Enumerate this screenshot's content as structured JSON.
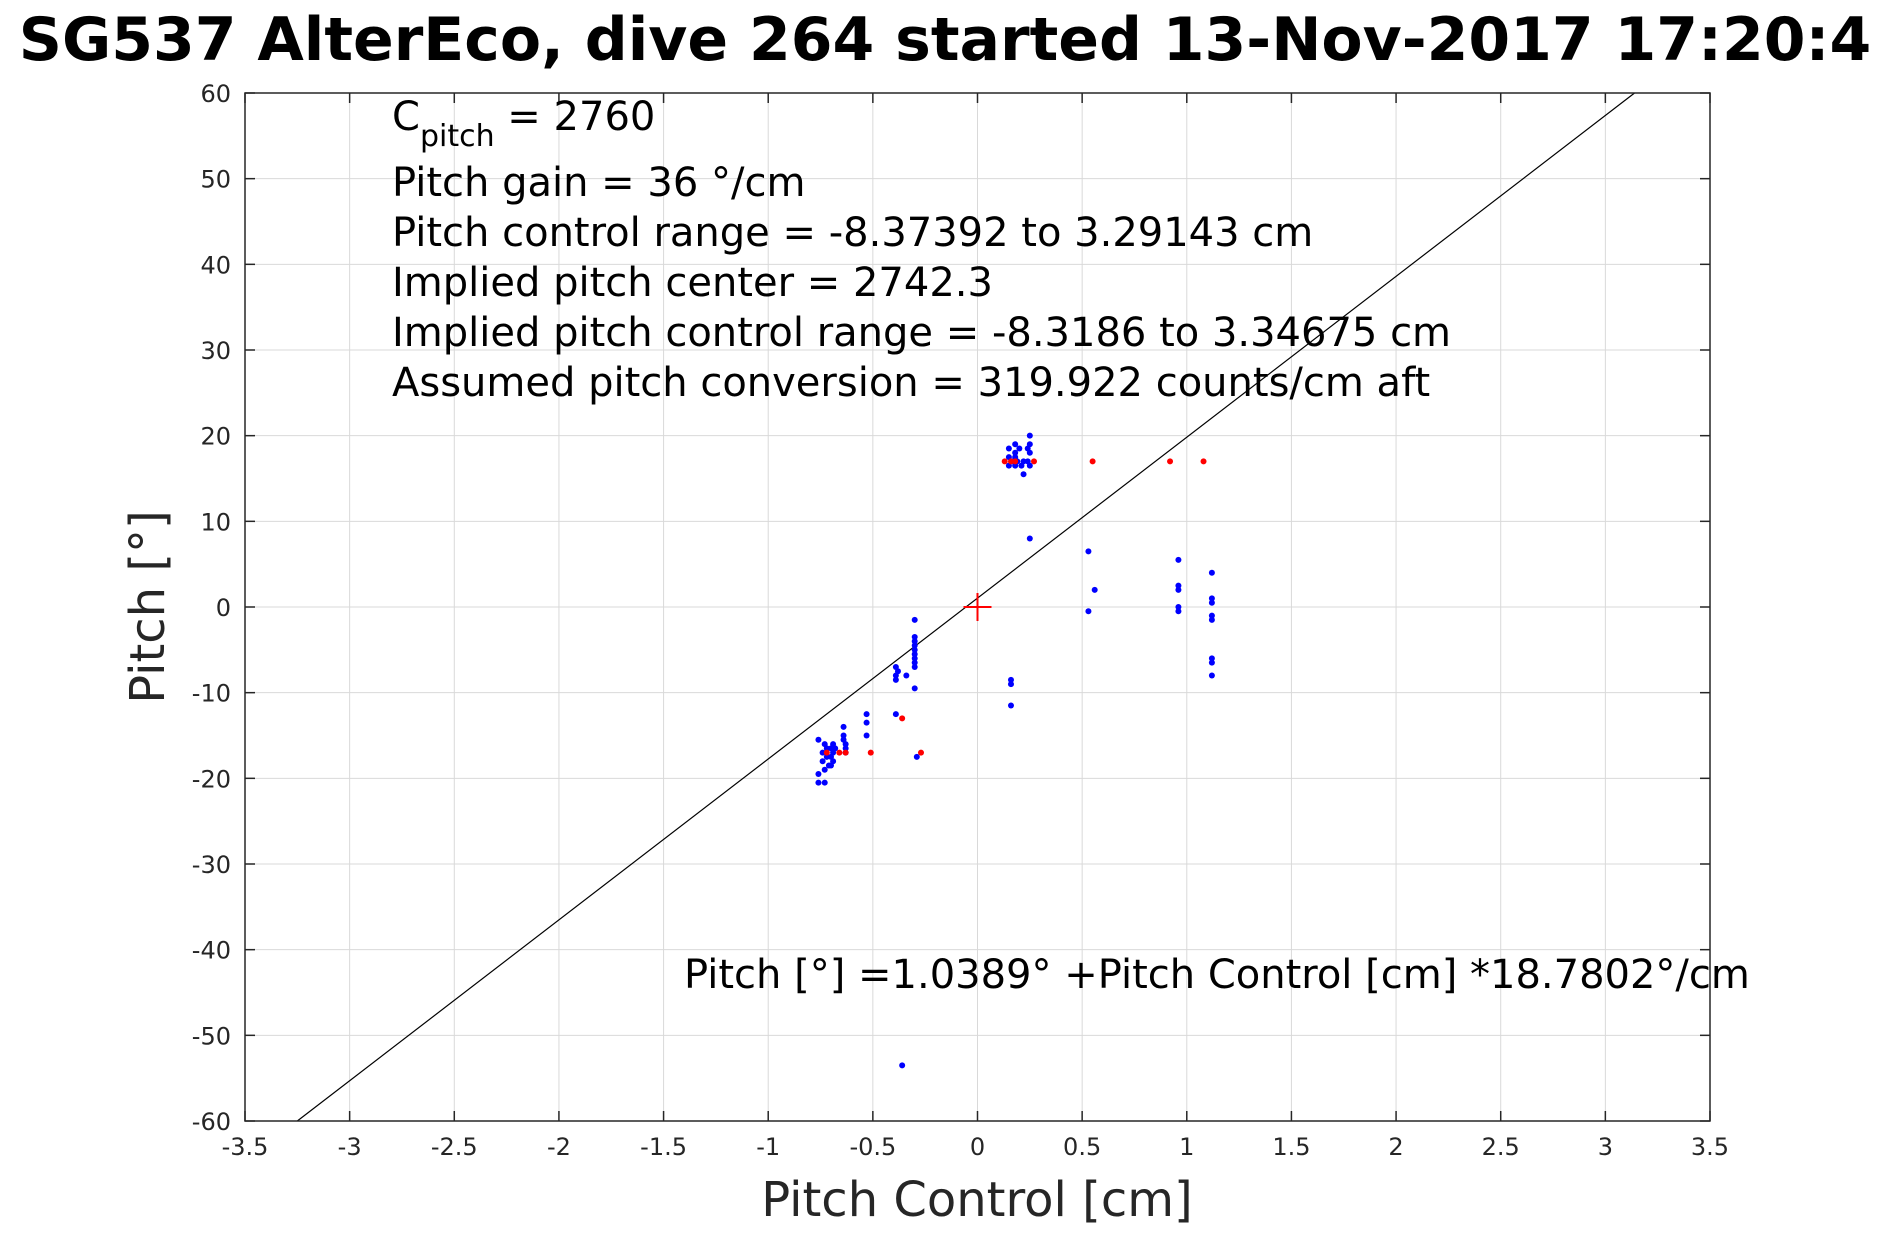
{
  "chart_data": {
    "type": "scatter",
    "title": "SG537 AlterEco, dive 264 started 13-Nov-2017 17:20:4",
    "xlabel": "Pitch Control [cm]",
    "ylabel": "Pitch [°]",
    "xlim": [
      -3.5,
      3.5
    ],
    "ylim": [
      -60,
      60
    ],
    "xticks": [
      "-3.5",
      "-3",
      "-2.5",
      "-2",
      "-1.5",
      "-1",
      "-0.5",
      "0",
      "0.5",
      "1",
      "1.5",
      "2",
      "2.5",
      "3",
      "3.5"
    ],
    "yticks": [
      "-60",
      "-50",
      "-40",
      "-30",
      "-20",
      "-10",
      "0",
      "10",
      "20",
      "30",
      "40",
      "50",
      "60"
    ],
    "grid": true,
    "annotations": {
      "cpitch_prefix": "C",
      "cpitch_sub": "pitch",
      "cpitch_value": " = 2760",
      "line2": "Pitch gain = 36 °/cm",
      "line3": "Pitch control range = -8.37392 to 3.29143 cm",
      "line4": "Implied pitch center = 2742.3",
      "line5": "Implied pitch control range = -8.3186 to 3.34675 cm",
      "line6": "Assumed pitch conversion = 319.922 counts/cm aft",
      "fit_equation": "Pitch [°] =1.0389° +Pitch Control [cm] *18.7802°/cm"
    },
    "fit_line": {
      "intercept": 1.0389,
      "slope": 18.7802,
      "color": "#000000"
    },
    "center_marker": {
      "x": 0,
      "y": 0,
      "color": "#ff0000"
    },
    "series": [
      {
        "color": "#0000ff",
        "points": [
          [
            -0.76,
            -15.5
          ],
          [
            -0.76,
            -19.5
          ],
          [
            -0.76,
            -20.5
          ],
          [
            -0.74,
            -17.0
          ],
          [
            -0.74,
            -18.0
          ],
          [
            -0.73,
            -16.0
          ],
          [
            -0.73,
            -19.0
          ],
          [
            -0.73,
            -20.5
          ],
          [
            -0.72,
            -17.5
          ],
          [
            -0.72,
            -16.5
          ],
          [
            -0.71,
            -18.5
          ],
          [
            -0.7,
            -16.5
          ],
          [
            -0.7,
            -17.5
          ],
          [
            -0.7,
            -18.5
          ],
          [
            -0.69,
            -16.0
          ],
          [
            -0.69,
            -17.0
          ],
          [
            -0.69,
            -18.0
          ],
          [
            -0.68,
            -16.5
          ],
          [
            -0.64,
            -14.0
          ],
          [
            -0.64,
            -15.0
          ],
          [
            -0.64,
            -15.5
          ],
          [
            -0.63,
            -16.0
          ],
          [
            -0.63,
            -16.5
          ],
          [
            -0.63,
            -17.0
          ],
          [
            -0.53,
            -12.5
          ],
          [
            -0.53,
            -13.5
          ],
          [
            -0.53,
            -15.0
          ],
          [
            -0.39,
            -7.0
          ],
          [
            -0.39,
            -8.0
          ],
          [
            -0.39,
            -8.5
          ],
          [
            -0.38,
            -7.5
          ],
          [
            -0.39,
            -12.5
          ],
          [
            -0.36,
            -53.5
          ],
          [
            -0.34,
            -8.0
          ],
          [
            -0.3,
            -1.5
          ],
          [
            -0.3,
            -3.5
          ],
          [
            -0.3,
            -4.0
          ],
          [
            -0.3,
            -4.5
          ],
          [
            -0.3,
            -5.0
          ],
          [
            -0.3,
            -5.5
          ],
          [
            -0.3,
            -6.0
          ],
          [
            -0.3,
            -6.5
          ],
          [
            -0.3,
            -7.0
          ],
          [
            -0.3,
            -9.5
          ],
          [
            -0.29,
            -17.5
          ],
          [
            0.15,
            16.5
          ],
          [
            0.15,
            17.5
          ],
          [
            0.15,
            18.5
          ],
          [
            0.16,
            -8.5
          ],
          [
            0.16,
            -9.0
          ],
          [
            0.16,
            -11.5
          ],
          [
            0.17,
            17.0
          ],
          [
            0.18,
            16.5
          ],
          [
            0.18,
            17.5
          ],
          [
            0.18,
            18.0
          ],
          [
            0.18,
            19.0
          ],
          [
            0.19,
            17.0
          ],
          [
            0.2,
            18.5
          ],
          [
            0.21,
            16.5
          ],
          [
            0.22,
            17.0
          ],
          [
            0.22,
            15.5
          ],
          [
            0.24,
            17.0
          ],
          [
            0.24,
            18.5
          ],
          [
            0.25,
            18.0
          ],
          [
            0.25,
            19.0
          ],
          [
            0.25,
            20.0
          ],
          [
            0.25,
            16.5
          ],
          [
            0.25,
            8.0
          ],
          [
            0.53,
            6.5
          ],
          [
            0.53,
            -0.5
          ],
          [
            0.56,
            2.0
          ],
          [
            0.96,
            5.5
          ],
          [
            0.96,
            2.5
          ],
          [
            0.96,
            2.0
          ],
          [
            0.96,
            0.0
          ],
          [
            0.96,
            -0.5
          ],
          [
            1.12,
            4.0
          ],
          [
            1.12,
            1.0
          ],
          [
            1.12,
            0.5
          ],
          [
            1.12,
            -1.0
          ],
          [
            1.12,
            -1.5
          ],
          [
            1.12,
            -6.0
          ],
          [
            1.12,
            -6.5
          ],
          [
            1.12,
            -8.0
          ]
        ]
      },
      {
        "color": "#ff0000",
        "points": [
          [
            -0.72,
            -17.0
          ],
          [
            -0.66,
            -17.0
          ],
          [
            -0.63,
            -17.0
          ],
          [
            -0.51,
            -17.0
          ],
          [
            -0.36,
            -13.0
          ],
          [
            -0.27,
            -17.0
          ],
          [
            0.13,
            17.0
          ],
          [
            0.16,
            17.0
          ],
          [
            0.18,
            17.0
          ],
          [
            0.27,
            17.0
          ],
          [
            0.55,
            17.0
          ],
          [
            0.92,
            17.0
          ],
          [
            1.08,
            17.0
          ]
        ]
      }
    ]
  }
}
